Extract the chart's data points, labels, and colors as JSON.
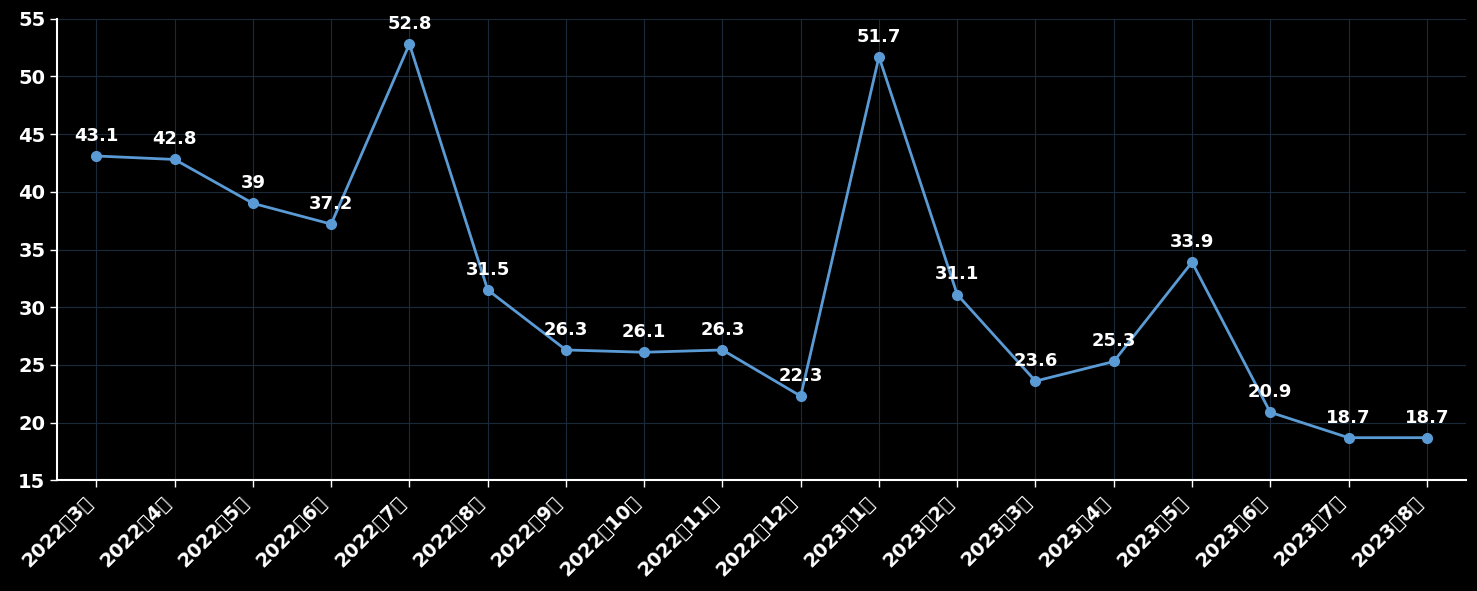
{
  "categories": [
    "2022年3月",
    "2022年4月",
    "2022年5月",
    "2022年6月",
    "2022年7月",
    "2022年8月",
    "2022年9月",
    "2022年10月",
    "2022年11月",
    "2022年12月",
    "2023年1月",
    "2023年2月",
    "2023年3月",
    "2023年4月",
    "2023年5月",
    "2023年6月",
    "2023年7月",
    "2023年8月"
  ],
  "values": [
    43.1,
    42.8,
    39.0,
    37.2,
    52.8,
    31.5,
    26.3,
    26.1,
    26.3,
    22.3,
    51.7,
    31.1,
    23.6,
    25.3,
    33.9,
    20.9,
    18.7,
    18.7
  ],
  "ylim": [
    15,
    55
  ],
  "yticks": [
    15,
    20,
    25,
    30,
    35,
    40,
    45,
    50,
    55
  ],
  "line_color": "#5b9bd5",
  "marker_color": "#5b9bd5",
  "bg_color": "#000000",
  "plot_bg_color": "#000000",
  "grid_color": "#1a2a3a",
  "text_color": "#ffffff",
  "font_size_labels": 13,
  "font_size_ticks": 14,
  "line_width": 2.0,
  "marker_size": 7
}
